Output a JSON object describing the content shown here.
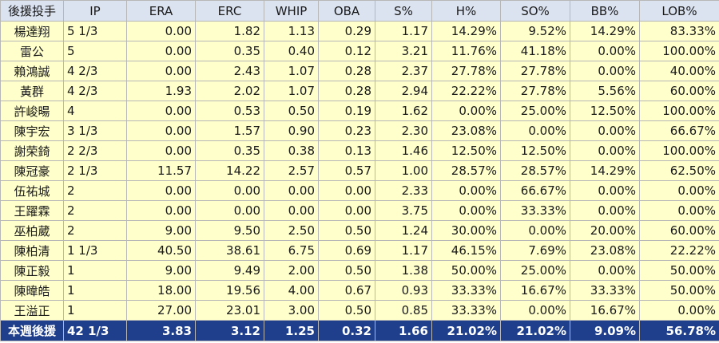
{
  "columns": [
    "後援投手",
    "IP",
    "ERA",
    "ERC",
    "WHIP",
    "OBA",
    "S%",
    "H%",
    "SO%",
    "BB%",
    "LOB%"
  ],
  "rows": [
    [
      "楊達翔",
      "5 1/3",
      "0.00",
      "1.82",
      "1.13",
      "0.29",
      "1.17",
      "14.29%",
      "9.52%",
      "14.29%",
      "83.33%"
    ],
    [
      "雷公",
      "5",
      "0.00",
      "0.35",
      "0.40",
      "0.12",
      "3.21",
      "11.76%",
      "41.18%",
      "0.00%",
      "100.00%"
    ],
    [
      "賴鴻誠",
      "4 2/3",
      "0.00",
      "2.43",
      "1.07",
      "0.28",
      "2.37",
      "27.78%",
      "27.78%",
      "0.00%",
      "40.00%"
    ],
    [
      "黃群",
      "4 2/3",
      "1.93",
      "2.02",
      "1.07",
      "0.28",
      "2.94",
      "22.22%",
      "27.78%",
      "5.56%",
      "60.00%"
    ],
    [
      "許峻暘",
      "4",
      "0.00",
      "0.53",
      "0.50",
      "0.19",
      "1.62",
      "0.00%",
      "25.00%",
      "12.50%",
      "100.00%"
    ],
    [
      "陳宇宏",
      "3 1/3",
      "0.00",
      "1.57",
      "0.90",
      "0.23",
      "2.30",
      "23.08%",
      "0.00%",
      "0.00%",
      "66.67%"
    ],
    [
      "謝荣錡",
      "2 2/3",
      "0.00",
      "0.35",
      "0.38",
      "0.13",
      "1.46",
      "12.50%",
      "12.50%",
      "0.00%",
      "100.00%"
    ],
    [
      "陳冠豪",
      "2 1/3",
      "11.57",
      "14.22",
      "2.57",
      "0.57",
      "1.00",
      "28.57%",
      "28.57%",
      "14.29%",
      "62.50%"
    ],
    [
      "伍祐城",
      "2",
      "0.00",
      "0.00",
      "0.00",
      "0.00",
      "2.33",
      "0.00%",
      "66.67%",
      "0.00%",
      "0.00%"
    ],
    [
      "王躍霖",
      "2",
      "0.00",
      "0.00",
      "0.00",
      "0.00",
      "3.75",
      "0.00%",
      "33.33%",
      "0.00%",
      "0.00%"
    ],
    [
      "巫柏葳",
      "2",
      "9.00",
      "9.50",
      "2.50",
      "0.50",
      "1.24",
      "30.00%",
      "0.00%",
      "20.00%",
      "60.00%"
    ],
    [
      "陳柏清",
      "1 1/3",
      "40.50",
      "38.61",
      "6.75",
      "0.69",
      "1.17",
      "46.15%",
      "7.69%",
      "23.08%",
      "22.22%"
    ],
    [
      "陳正毅",
      "1",
      "9.00",
      "9.49",
      "2.00",
      "0.50",
      "1.38",
      "50.00%",
      "25.00%",
      "0.00%",
      "50.00%"
    ],
    [
      "陳暐皓",
      "1",
      "18.00",
      "19.56",
      "4.00",
      "0.67",
      "0.93",
      "33.33%",
      "16.67%",
      "33.33%",
      "50.00%"
    ],
    [
      "王溢正",
      "1",
      "27.00",
      "23.01",
      "3.00",
      "0.50",
      "0.85",
      "33.33%",
      "0.00%",
      "16.67%",
      "0.00%"
    ]
  ],
  "total": [
    "本週後援",
    "42 1/3",
    "3.83",
    "3.12",
    "1.25",
    "0.32",
    "1.66",
    "21.02%",
    "21.02%",
    "9.09%",
    "56.78%"
  ],
  "colors": {
    "header_bg": "#dbe3f1",
    "row_bg": "#ffffcc",
    "total_bg": "#1f3f8c",
    "total_text": "#ffffff",
    "border": "#b7b7b7"
  }
}
